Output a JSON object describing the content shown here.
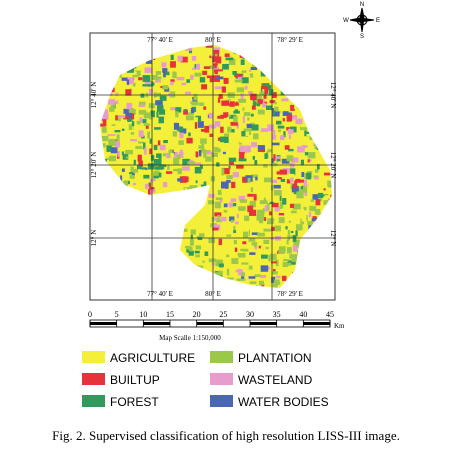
{
  "map": {
    "top_labels": [
      "77° 40' E",
      "80° E",
      "78° 29' E"
    ],
    "bottom_labels": [
      "77° 40' E",
      "80° E",
      "78° 29' E"
    ],
    "left_labels": [
      "12° 40' N",
      "12° 20' N",
      "12° N"
    ],
    "right_labels": [
      "12° 40' N",
      "12° 20' N",
      "12° N"
    ],
    "compass": [
      "N",
      "E",
      "S",
      "W"
    ],
    "scale_bar": {
      "ticks": [
        "0",
        "5",
        "10",
        "15",
        "20",
        "25",
        "30",
        "35",
        "40",
        "45"
      ],
      "unit": "Km",
      "label": "Map Scalle 1:150,000"
    }
  },
  "legend": [
    {
      "label": "AGRICULTURE",
      "color": "#f4f03a"
    },
    {
      "label": "PLANTATION",
      "color": "#9cc84a"
    },
    {
      "label": "BUILTUP",
      "color": "#e6333b"
    },
    {
      "label": "WASTELAND",
      "color": "#e79ccd"
    },
    {
      "label": "FOREST",
      "color": "#2f9a5c"
    },
    {
      "label": "WATER BODIES",
      "color": "#4a67b3"
    }
  ],
  "caption": "Fig. 2. Supervised classification of high resolution LISS-III image."
}
